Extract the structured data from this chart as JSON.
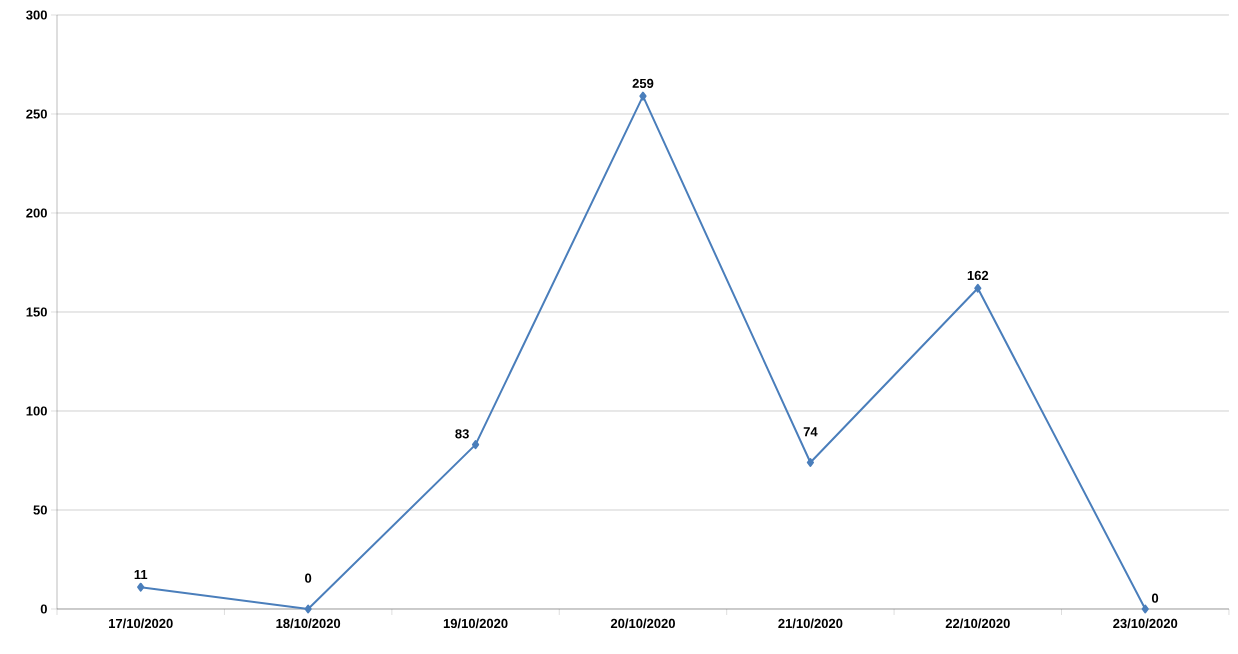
{
  "chart_data": {
    "type": "line",
    "categories": [
      "17/10/2020",
      "18/10/2020",
      "19/10/2020",
      "20/10/2020",
      "21/10/2020",
      "22/10/2020",
      "23/10/2020"
    ],
    "values": [
      11,
      0,
      83,
      259,
      74,
      162,
      0
    ],
    "color": "#4a7ebb",
    "ylim": [
      0,
      300
    ],
    "yticks": [
      0,
      50,
      100,
      150,
      200,
      250,
      300
    ],
    "grid": "y",
    "marker": "diamond",
    "data_labels": true
  }
}
